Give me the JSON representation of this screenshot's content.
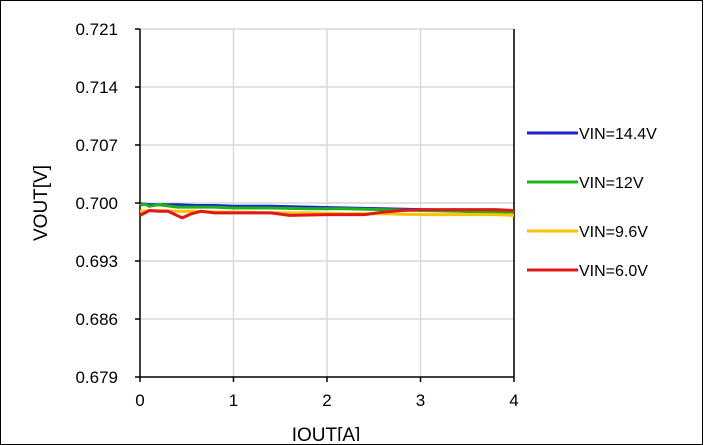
{
  "chart_data": {
    "type": "line",
    "xlabel": "IOUT[A]",
    "ylabel": "VOUT[V]",
    "xlim": [
      0,
      4
    ],
    "ylim": [
      0.679,
      0.721
    ],
    "x_ticks": [
      "0",
      "1",
      "2",
      "3",
      "4"
    ],
    "y_ticks": [
      "0.679",
      "0.686",
      "0.693",
      "0.700",
      "0.707",
      "0.714",
      "0.721"
    ],
    "grid": true,
    "legend_position": "right",
    "series": [
      {
        "name": "VIN=14.4V",
        "color": "#1f1fd6",
        "x": [
          0,
          0.1,
          0.2,
          0.4,
          0.6,
          0.8,
          1.0,
          1.4,
          1.8,
          2.2,
          2.6,
          3.0,
          3.4,
          3.8,
          4.0
        ],
        "y": [
          0.6999,
          0.6998,
          0.6998,
          0.6998,
          0.6997,
          0.6997,
          0.6996,
          0.6996,
          0.6995,
          0.6994,
          0.6993,
          0.6992,
          0.6991,
          0.699,
          0.699
        ]
      },
      {
        "name": "VIN=12V",
        "color": "#18b418",
        "x": [
          0,
          0.05,
          0.1,
          0.2,
          0.4,
          0.6,
          0.8,
          1.0,
          1.4,
          1.8,
          2.2,
          2.6,
          3.0,
          3.4,
          3.8,
          4.0
        ],
        "y": [
          0.6997,
          0.6999,
          0.6996,
          0.6998,
          0.6995,
          0.6995,
          0.6995,
          0.6994,
          0.6994,
          0.6993,
          0.6993,
          0.6992,
          0.6991,
          0.699,
          0.6989,
          0.6989
        ]
      },
      {
        "name": "VIN=9.6V",
        "color": "#ffc000",
        "x": [
          0,
          0.2,
          0.4,
          0.6,
          0.8,
          1.0,
          1.4,
          1.8,
          2.2,
          2.6,
          3.0,
          3.4,
          3.8,
          4.0
        ],
        "y": [
          0.699,
          0.6991,
          0.699,
          0.699,
          0.6989,
          0.6989,
          0.6988,
          0.6988,
          0.6987,
          0.6987,
          0.6986,
          0.6986,
          0.6986,
          0.6985
        ]
      },
      {
        "name": "VIN=6.0V",
        "color": "#e01818",
        "x": [
          0,
          0.1,
          0.2,
          0.3,
          0.45,
          0.55,
          0.65,
          0.8,
          1.0,
          1.4,
          1.6,
          2.0,
          2.4,
          2.6,
          2.8,
          3.0,
          3.4,
          3.8,
          4.0
        ],
        "y": [
          0.6985,
          0.6991,
          0.699,
          0.699,
          0.6982,
          0.6987,
          0.699,
          0.6988,
          0.6988,
          0.6988,
          0.6985,
          0.6986,
          0.6986,
          0.6989,
          0.6991,
          0.6992,
          0.6992,
          0.6992,
          0.6991
        ]
      }
    ]
  }
}
